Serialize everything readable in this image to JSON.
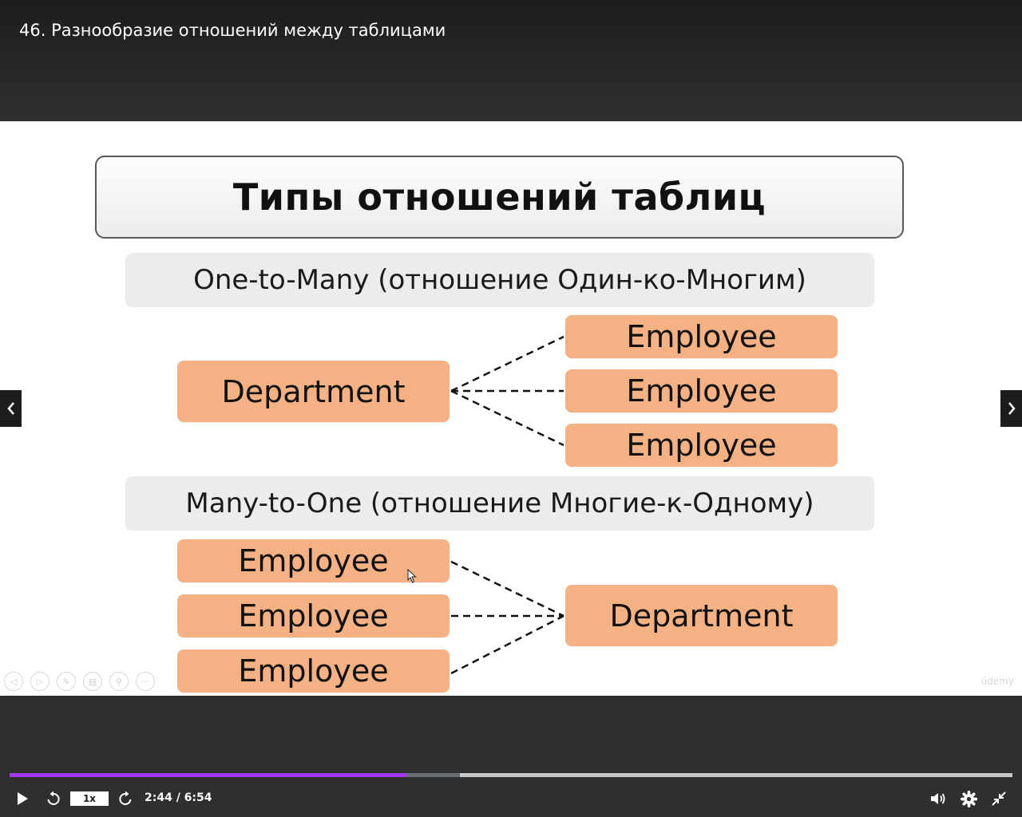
{
  "header": {
    "title": "46. Разнообразие отношений между таблицами"
  },
  "slide": {
    "title": "Типы отношений таблиц",
    "one_to_many": {
      "heading": "One-to-Many (отношение Один-ко-Многим)",
      "parent": "Department",
      "children": [
        "Employee",
        "Employee",
        "Employee"
      ]
    },
    "many_to_one": {
      "heading": "Many-to-One (отношение Многие-к-Одному)",
      "children": [
        "Employee",
        "Employee",
        "Employee"
      ],
      "parent": "Department"
    },
    "watermark": "ûdemy"
  },
  "player": {
    "speed": "1x",
    "time": "2:44 / 6:54",
    "progress_fraction": 0.396,
    "buffered_fraction": 0.449,
    "accent": "#a435f0"
  },
  "icons": [
    "play-icon",
    "rewind-icon",
    "forward-icon",
    "volume-icon",
    "settings-icon",
    "exit-fullscreen-icon",
    "prev-arrow-icon",
    "next-arrow-icon"
  ]
}
